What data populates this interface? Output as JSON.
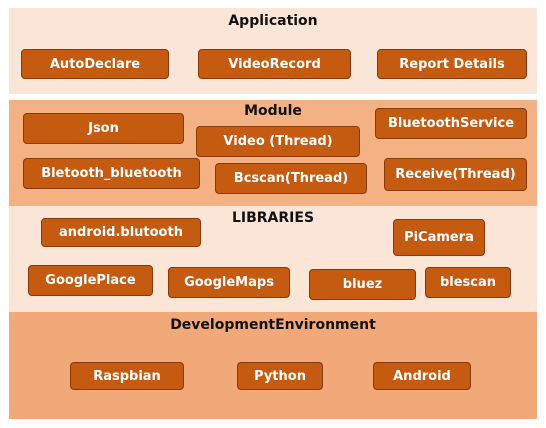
{
  "layers": {
    "application": {
      "title": "Application",
      "items": [
        "AutoDeclare",
        "VideoRecord",
        "Report Details"
      ]
    },
    "module": {
      "title": "Module",
      "items": [
        "Json",
        "Video (Thread)",
        "BluetoothService",
        "Bletooth_bluetooth",
        "Bcscan(Thread)",
        "Receive(Thread)"
      ]
    },
    "libraries": {
      "title": "LIBRARIES",
      "items": [
        "android.blutooth",
        "PiCamera",
        "GooglePlace",
        "GoogleMaps",
        "bluez",
        "blescan"
      ]
    },
    "development": {
      "title": "DevelopmentEnvironment",
      "items": [
        "Raspbian",
        "Python",
        "Android"
      ]
    }
  },
  "colors": {
    "box_fill": "#c55a11",
    "band_light": "#fbe5d6",
    "band_medium": "#f4b183",
    "band_strong": "#f1a97a"
  }
}
